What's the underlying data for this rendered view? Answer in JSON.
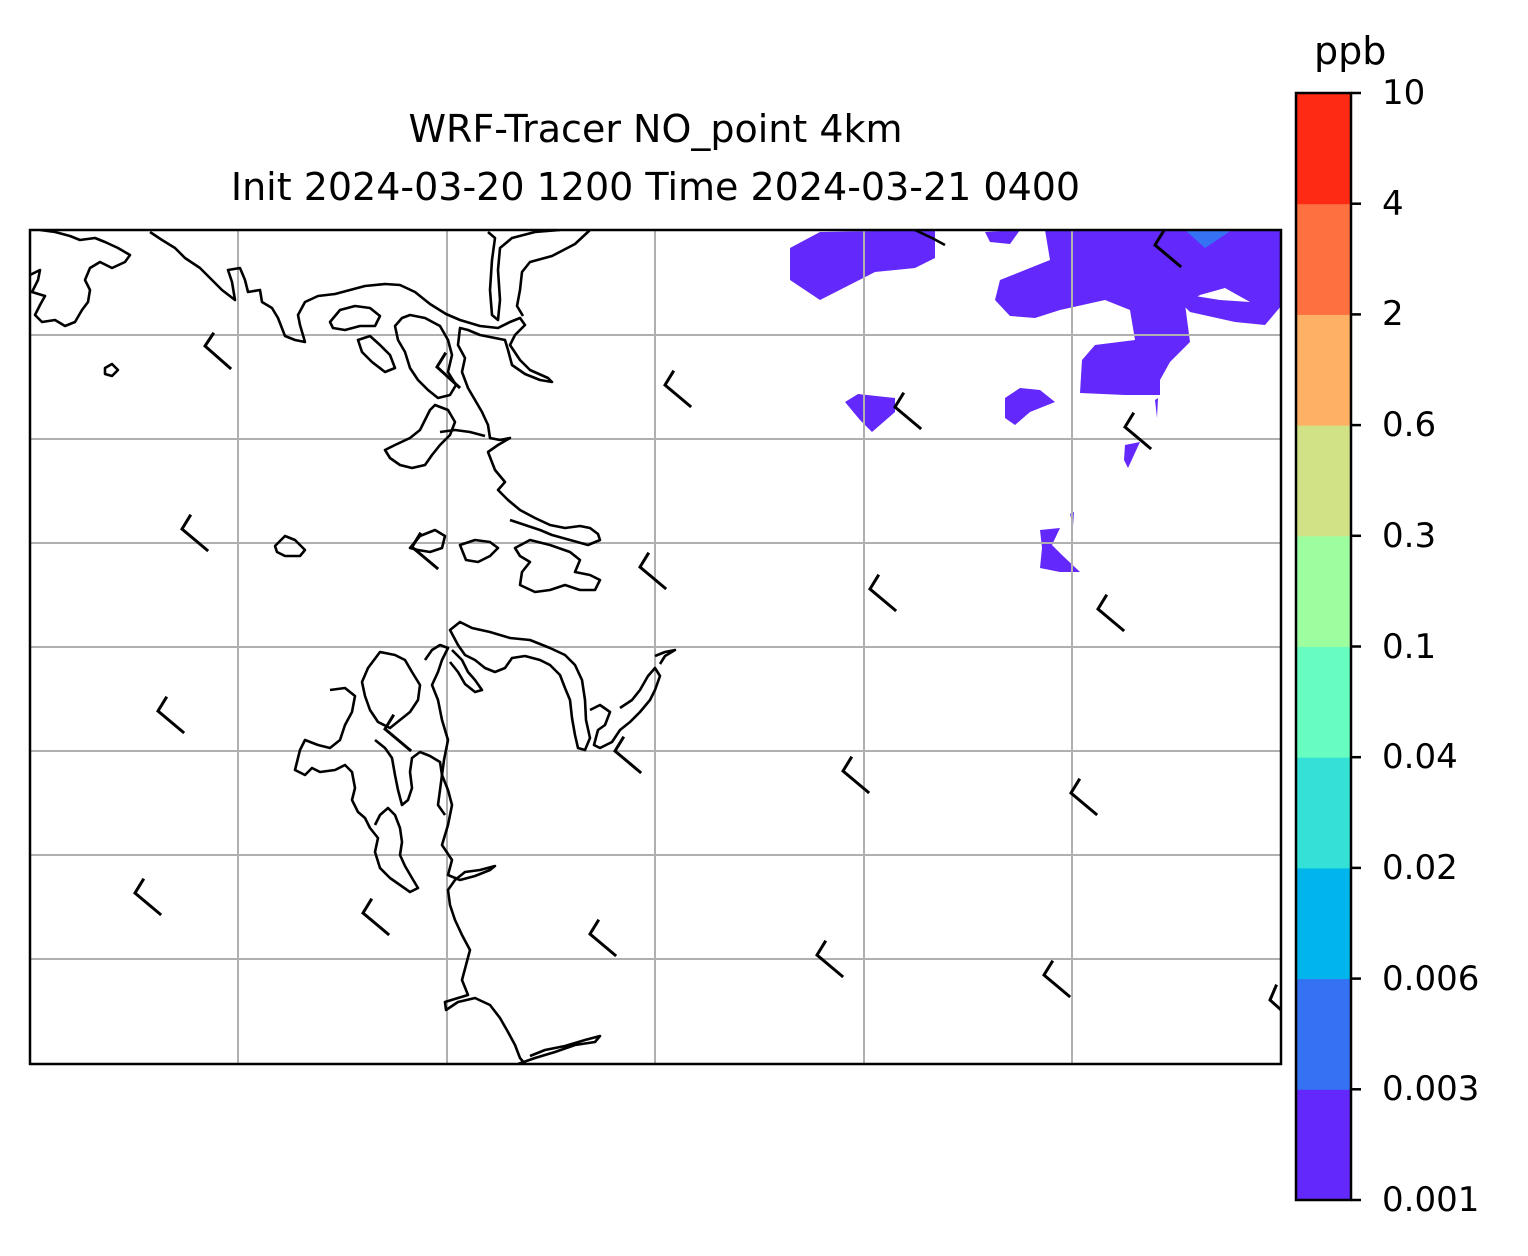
{
  "title_line1": "WRF-Tracer NO_point 4km",
  "title_line2": "Init 2024-03-20 1200 Time 2024-03-21 0400",
  "colorbar": {
    "unit": "ppb",
    "levels": [
      "0.001",
      "0.003",
      "0.006",
      "0.02",
      "0.04",
      "0.1",
      "0.3",
      "0.6",
      "2",
      "4",
      "10"
    ],
    "colors": [
      "#6328fb",
      "#3472f3",
      "#00b5eb",
      "#33e1d6",
      "#68fdc0",
      "#9dfea0",
      "#d1e286",
      "#feb065",
      "#fe7040",
      "#fe2a14"
    ]
  },
  "map": {
    "plume_color": "#6328fb",
    "plume_color_secondary": "#3472f3",
    "coastline_color": "#000000",
    "grid_color": "#b0b0b0"
  }
}
